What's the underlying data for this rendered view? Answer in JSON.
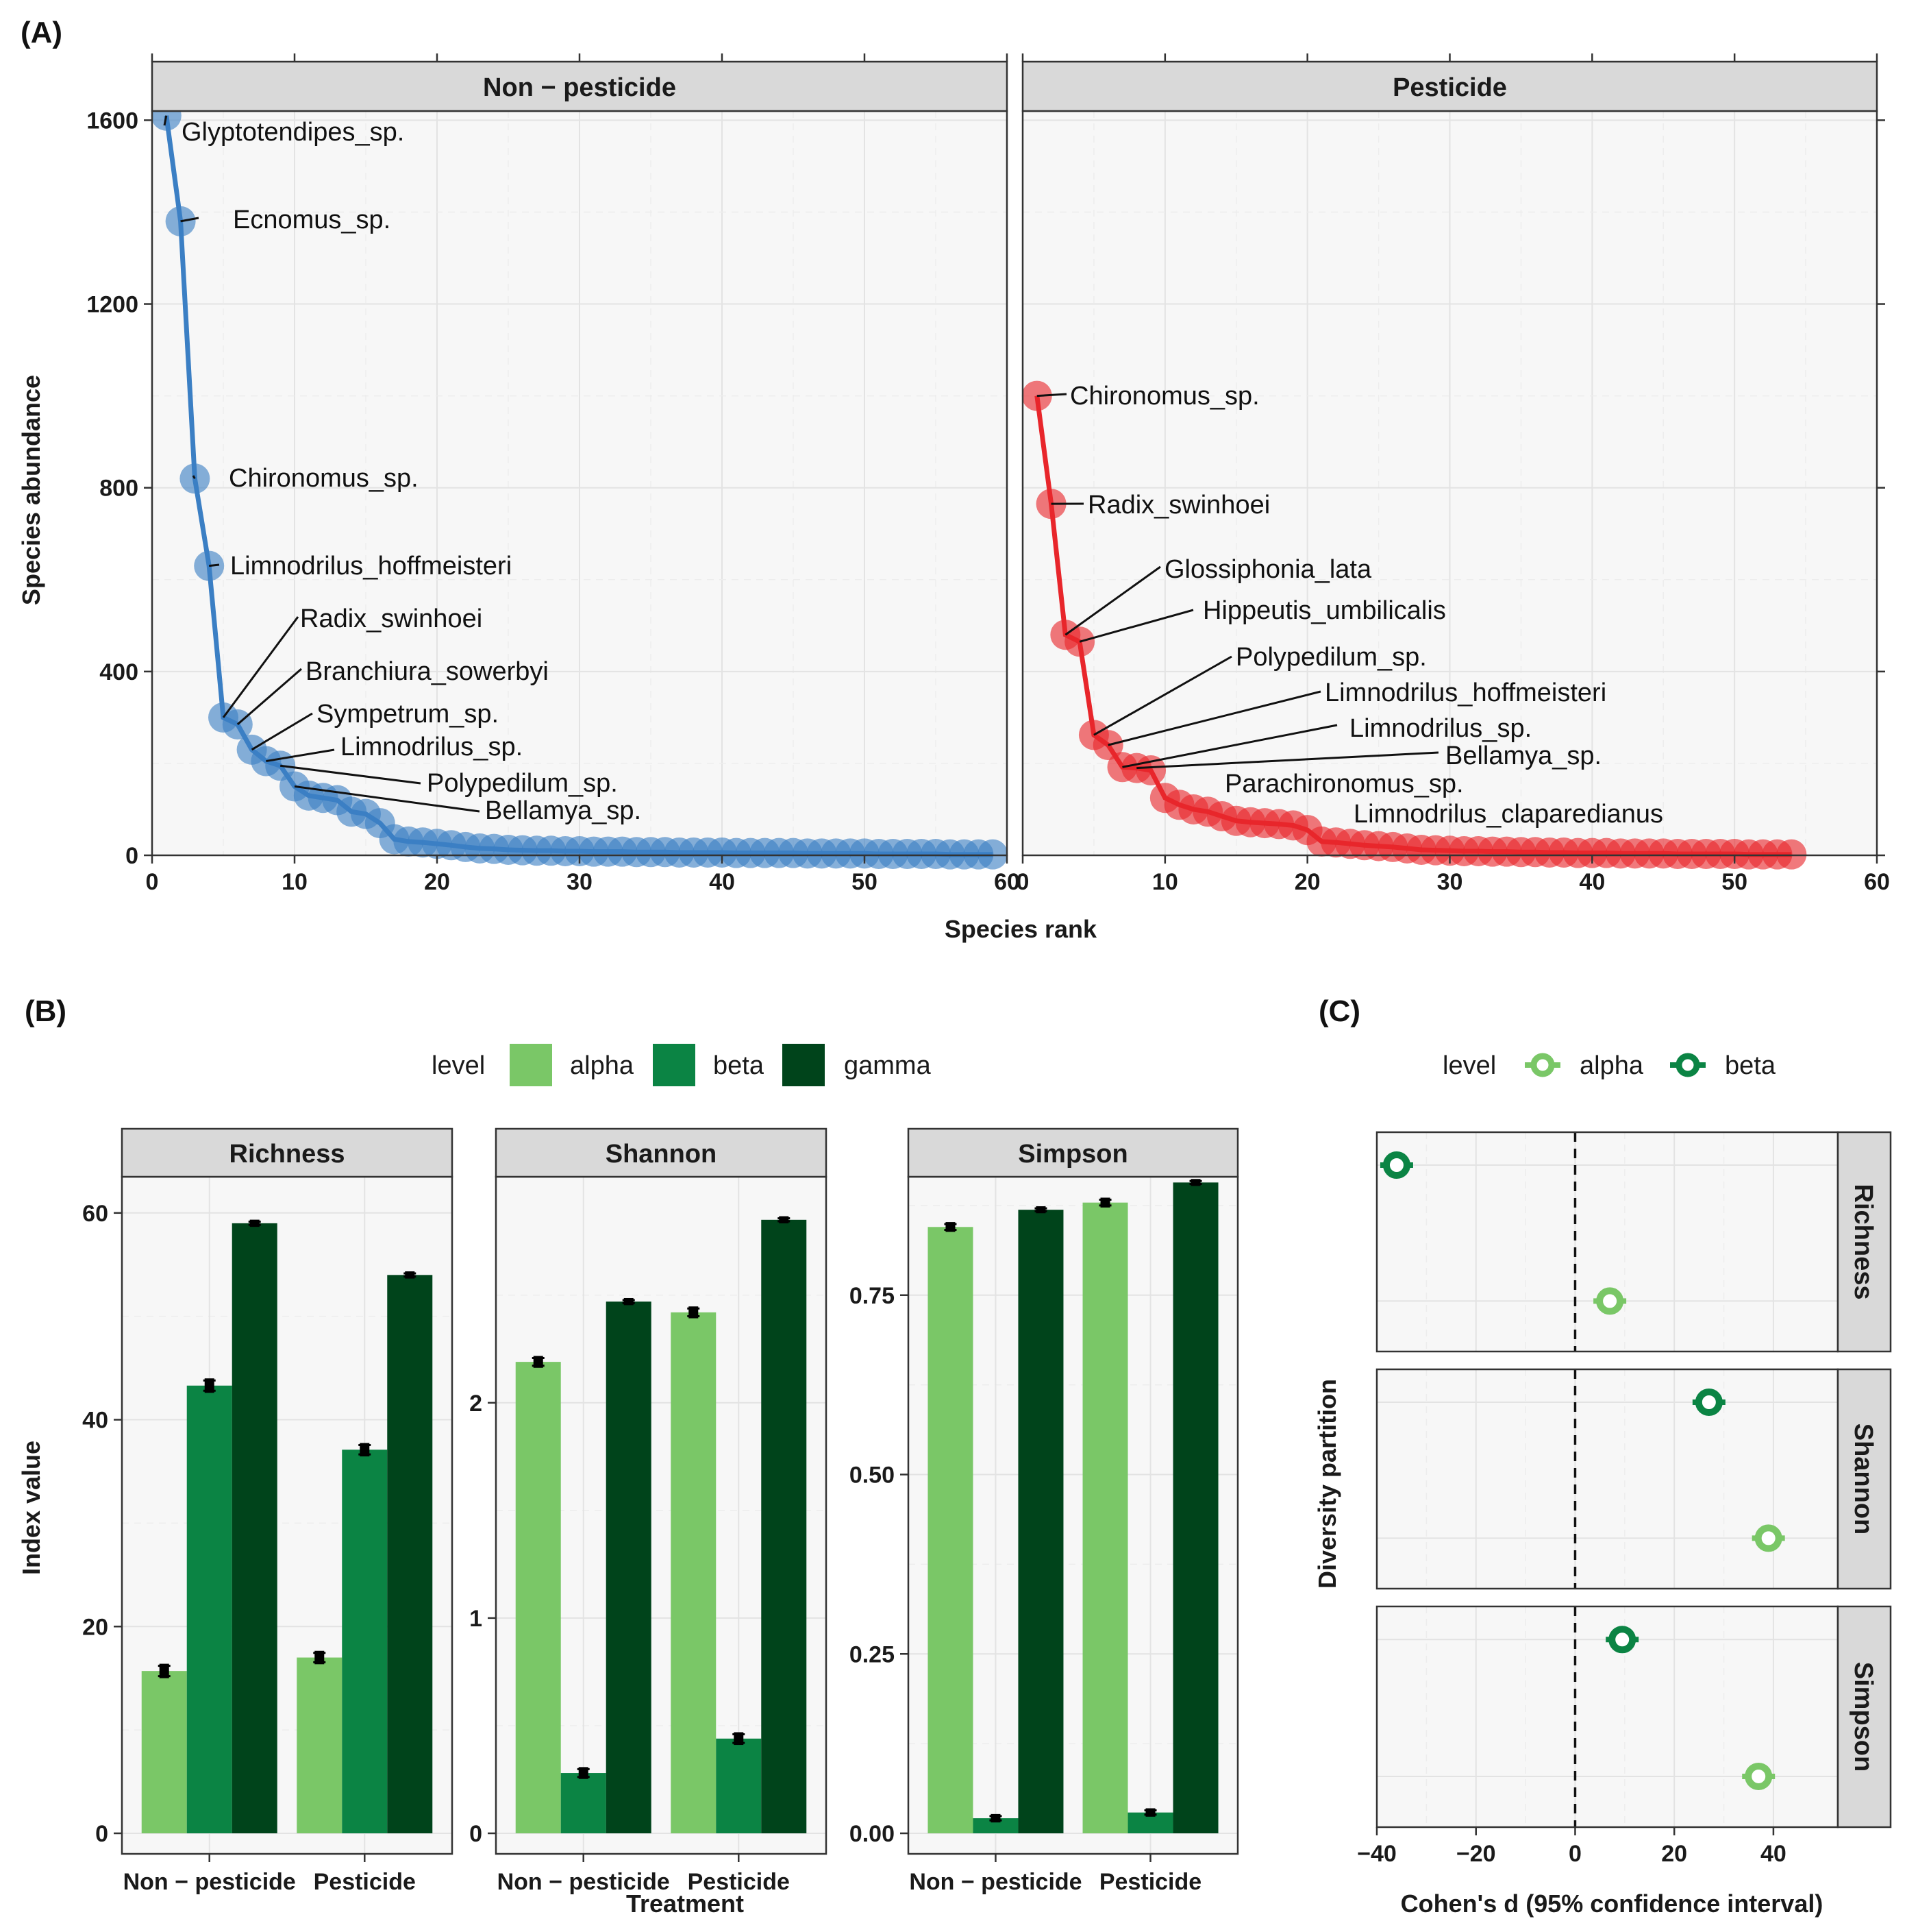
{
  "panels": {
    "A": {
      "tag": "(A)",
      "xlabel": "Species rank",
      "ylabel": "Species abundance",
      "x_ticks": [
        0,
        10,
        20,
        30,
        40,
        50,
        60
      ],
      "y_ticks": [
        0,
        400,
        800,
        1200,
        1600
      ],
      "xlim": [
        0,
        60
      ],
      "ylim": [
        0,
        1620
      ]
    },
    "B": {
      "tag": "(B)",
      "xlabel": "Treatment",
      "ylabel": "Index value",
      "legend_title": "level",
      "legend": [
        "alpha",
        "beta",
        "gamma"
      ]
    },
    "C": {
      "tag": "(C)",
      "xlabel": "Cohen's d (95% confidence interval)",
      "ylabel": "Diversity partition",
      "legend_title": "level",
      "legend": [
        "alpha",
        "beta"
      ],
      "x_ticks": [
        -40,
        -20,
        0,
        20,
        40
      ],
      "xlim": [
        -40,
        53
      ]
    }
  },
  "colors": {
    "non_pesticide": "#3b7fc4",
    "pesticide": "#e8262b",
    "alpha": "#7ac767",
    "beta": "#0b8444",
    "gamma": "#00441b"
  },
  "chart_data": [
    {
      "type": "line",
      "panel": "A",
      "facets": [
        "Non − pesticide",
        "Pesticide"
      ],
      "series": [
        {
          "name": "Non − pesticide",
          "x": [
            1,
            2,
            3,
            4,
            5,
            6,
            7,
            8,
            9,
            10,
            11,
            12,
            13,
            14,
            15,
            16,
            17,
            18,
            19,
            20,
            21,
            22,
            23,
            24,
            25,
            26,
            27,
            28,
            29,
            30,
            31,
            32,
            33,
            34,
            35,
            36,
            37,
            38,
            39,
            40,
            41,
            42,
            43,
            44,
            45,
            46,
            47,
            48,
            49,
            50,
            51,
            52,
            53,
            54,
            55,
            56,
            57,
            58,
            59
          ],
          "y": [
            1610,
            1380,
            820,
            630,
            300,
            285,
            230,
            205,
            195,
            150,
            130,
            125,
            120,
            95,
            90,
            70,
            35,
            30,
            28,
            25,
            22,
            18,
            15,
            14,
            12,
            11,
            10,
            10,
            9,
            9,
            8,
            8,
            8,
            7,
            7,
            7,
            6,
            6,
            6,
            6,
            5,
            5,
            5,
            5,
            5,
            4,
            4,
            4,
            4,
            4,
            3,
            3,
            3,
            3,
            3,
            2,
            2,
            2,
            2
          ],
          "labels": [
            {
              "rank": 1,
              "text": "Glyptotendipes_sp."
            },
            {
              "rank": 2,
              "text": "Ecnomus_sp."
            },
            {
              "rank": 3,
              "text": "Chironomus_sp."
            },
            {
              "rank": 4,
              "text": "Limnodrilus_hoffmeisteri"
            },
            {
              "rank": 5,
              "text": "Radix_swinhoei"
            },
            {
              "rank": 6,
              "text": "Branchiura_sowerbyi"
            },
            {
              "rank": 7,
              "text": "Sympetrum_sp."
            },
            {
              "rank": 8,
              "text": "Limnodrilus_sp."
            },
            {
              "rank": 9,
              "text": "Polypedilum_sp."
            },
            {
              "rank": 10,
              "text": "Bellamya_sp."
            }
          ]
        },
        {
          "name": "Pesticide",
          "x": [
            1,
            2,
            3,
            4,
            5,
            6,
            7,
            8,
            9,
            10,
            11,
            12,
            13,
            14,
            15,
            16,
            17,
            18,
            19,
            20,
            21,
            22,
            23,
            24,
            25,
            26,
            27,
            28,
            29,
            30,
            31,
            32,
            33,
            34,
            35,
            36,
            37,
            38,
            39,
            40,
            41,
            42,
            43,
            44,
            45,
            46,
            47,
            48,
            49,
            50,
            51,
            52,
            53,
            54
          ],
          "y": [
            1000,
            765,
            480,
            465,
            262,
            240,
            192,
            190,
            185,
            125,
            110,
            100,
            95,
            85,
            75,
            72,
            70,
            68,
            65,
            55,
            30,
            28,
            25,
            22,
            20,
            18,
            15,
            12,
            11,
            10,
            9,
            9,
            8,
            8,
            7,
            7,
            6,
            6,
            5,
            5,
            5,
            4,
            4,
            4,
            4,
            3,
            3,
            3,
            3,
            3,
            2,
            2,
            2,
            2
          ],
          "labels": [
            {
              "rank": 1,
              "text": "Chironomus_sp."
            },
            {
              "rank": 2,
              "text": "Radix_swinhoei"
            },
            {
              "rank": 3,
              "text": "Glossiphonia_lata"
            },
            {
              "rank": 4,
              "text": "Hippeutis_umbilicalis"
            },
            {
              "rank": 5,
              "text": "Polypedilum_sp."
            },
            {
              "rank": 6,
              "text": "Limnodrilus_hoffmeisteri"
            },
            {
              "rank": 7,
              "text": "Limnodrilus_sp."
            },
            {
              "rank": 8,
              "text": "Bellamya_sp."
            },
            {
              "rank": 9,
              "text": "Parachironomus_sp."
            },
            {
              "rank": 10,
              "text": "Limnodrilus_claparedianus"
            }
          ]
        }
      ]
    },
    {
      "type": "bar",
      "panel": "B",
      "categories": [
        "Non − pesticide",
        "Pesticide"
      ],
      "facets": [
        {
          "name": "Richness",
          "ylim": [
            0,
            63.5
          ],
          "y_ticks": [
            {
              "v": 0,
              "label": "0"
            },
            {
              "v": 20,
              "label": "20"
            },
            {
              "v": 40,
              "label": "40"
            },
            {
              "v": 60,
              "label": "60"
            }
          ],
          "series": [
            {
              "name": "alpha",
              "values": [
                15.7,
                17.0
              ],
              "errors": [
                0.5,
                0.45
              ]
            },
            {
              "name": "beta",
              "values": [
                43.3,
                37.1
              ],
              "errors": [
                0.5,
                0.45
              ]
            },
            {
              "name": "gamma",
              "values": [
                59.0,
                54.0
              ],
              "errors": [
                0.15,
                0.15
              ]
            }
          ]
        },
        {
          "name": "Shannon",
          "ylim": [
            0,
            3.05
          ],
          "y_ticks": [
            {
              "v": 0,
              "label": "0"
            },
            {
              "v": 1,
              "label": "1"
            },
            {
              "v": 2,
              "label": "2"
            }
          ],
          "series": [
            {
              "name": "alpha",
              "values": [
                2.19,
                2.42
              ],
              "errors": [
                0.018,
                0.018
              ]
            },
            {
              "name": "beta",
              "values": [
                0.28,
                0.44
              ],
              "errors": [
                0.018,
                0.02
              ]
            },
            {
              "name": "gamma",
              "values": [
                2.47,
                2.85
              ],
              "errors": [
                0.007,
                0.007
              ]
            }
          ]
        },
        {
          "name": "Simpson",
          "ylim": [
            0,
            0.915
          ],
          "y_ticks": [
            {
              "v": 0,
              "label": "0.00"
            },
            {
              "v": 0.25,
              "label": "0.25"
            },
            {
              "v": 0.5,
              "label": "0.50"
            },
            {
              "v": 0.75,
              "label": "0.75"
            }
          ],
          "series": [
            {
              "name": "alpha",
              "values": [
                0.845,
                0.879
              ],
              "errors": [
                0.004,
                0.004
              ]
            },
            {
              "name": "beta",
              "values": [
                0.021,
                0.029
              ],
              "errors": [
                0.003,
                0.003
              ]
            },
            {
              "name": "gamma",
              "values": [
                0.869,
                0.907
              ],
              "errors": [
                0.002,
                0.002
              ]
            }
          ]
        }
      ]
    },
    {
      "type": "scatter",
      "panel": "C",
      "facets": [
        {
          "name": "Richness",
          "points": [
            {
              "level": "beta",
              "d": -36
            },
            {
              "level": "alpha",
              "d": 7
            }
          ]
        },
        {
          "name": "Shannon",
          "points": [
            {
              "level": "beta",
              "d": 27
            },
            {
              "level": "alpha",
              "d": 39
            }
          ]
        },
        {
          "name": "Simpson",
          "points": [
            {
              "level": "beta",
              "d": 9.5
            },
            {
              "level": "alpha",
              "d": 37
            }
          ]
        }
      ],
      "reference_line": 0
    }
  ]
}
